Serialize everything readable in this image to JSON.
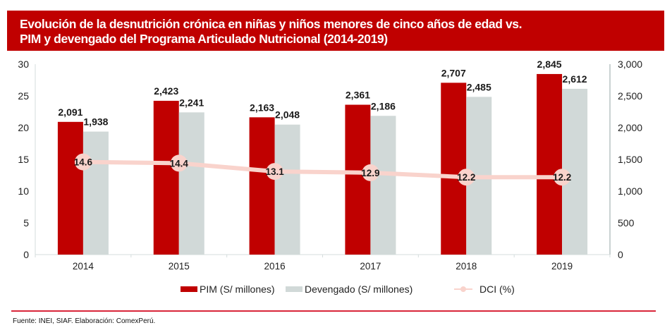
{
  "title": {
    "line1": "Evolución de la desnutrición crónica en niñas y niños menores de cinco años de edad vs.",
    "line2": "PIM y devengado del Programa Articulado Nutricional (2014-2019)"
  },
  "colors": {
    "title_bg": "#c00000",
    "pim": "#c00000",
    "devengado": "#d1d9d8",
    "dci": "#f9d3cc",
    "footer_rule": "#d9263a"
  },
  "legend": {
    "pim": "PIM (S/ millones)",
    "devengado": "Devengado (S/ millones)",
    "dci": "DCI (%)"
  },
  "source": "Fuente: INEI, SIAF. Elaboración: ComexPerú.",
  "chart_data": {
    "type": "bar",
    "title": "Evolución de la desnutrición crónica en niñas y niños menores de cinco años de edad vs. PIM y devengado del Programa Articulado Nutricional (2014-2019)",
    "categories": [
      "2014",
      "2015",
      "2016",
      "2017",
      "2018",
      "2019"
    ],
    "series": [
      {
        "name": "PIM (S/ millones)",
        "type": "bar",
        "axis": "right",
        "values": [
          2091,
          2423,
          2163,
          2361,
          2707,
          2845
        ],
        "labels": [
          "2,091",
          "2,423",
          "2,163",
          "2,361",
          "2,707",
          "2,845"
        ]
      },
      {
        "name": "Devengado (S/ millones)",
        "type": "bar",
        "axis": "right",
        "values": [
          1938,
          2241,
          2048,
          2186,
          2485,
          2612
        ],
        "labels": [
          "1,938",
          "2,241",
          "2,048",
          "2,186",
          "2,485",
          "2,612"
        ]
      },
      {
        "name": "DCI (%)",
        "type": "line",
        "axis": "left",
        "values": [
          14.6,
          14.4,
          13.1,
          12.9,
          12.2,
          12.2
        ],
        "labels": [
          "14.6",
          "14.4",
          "13.1",
          "12.9",
          "12.2",
          "12.2"
        ]
      }
    ],
    "left_axis": {
      "ylim": [
        0,
        30
      ],
      "ticks": [
        "0",
        "5",
        "10",
        "15",
        "20",
        "25",
        "30"
      ],
      "tick_values": [
        0,
        5,
        10,
        15,
        20,
        25,
        30
      ]
    },
    "right_axis": {
      "ylim": [
        0,
        3000
      ],
      "ticks": [
        "0",
        "500",
        "1,000",
        "1,500",
        "2,000",
        "2,500",
        "3,000"
      ],
      "tick_values": [
        0,
        500,
        1000,
        1500,
        2000,
        2500,
        3000
      ]
    },
    "xlabel": "",
    "ylabel": "",
    "grid": false,
    "legend_position": "bottom"
  }
}
